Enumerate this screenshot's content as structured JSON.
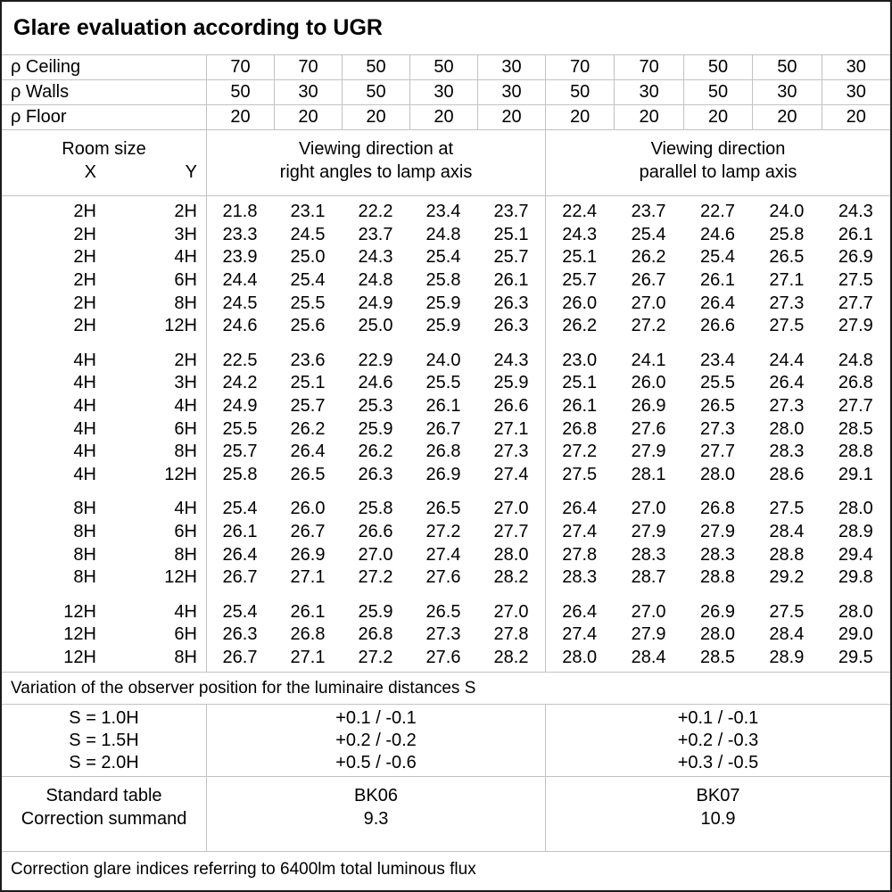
{
  "title": "Glare evaluation according to UGR",
  "reflectance": {
    "rows": [
      {
        "label": "ρ Ceiling",
        "values": [
          "70",
          "70",
          "50",
          "50",
          "30",
          "70",
          "70",
          "50",
          "50",
          "30"
        ]
      },
      {
        "label": "ρ Walls",
        "values": [
          "50",
          "30",
          "50",
          "30",
          "30",
          "50",
          "30",
          "50",
          "30",
          "30"
        ]
      },
      {
        "label": "ρ Floor",
        "values": [
          "20",
          "20",
          "20",
          "20",
          "20",
          "20",
          "20",
          "20",
          "20",
          "20"
        ]
      }
    ]
  },
  "header": {
    "room_size_label": "Room size",
    "x_label": "X",
    "y_label": "Y",
    "group1_line1": "Viewing direction at",
    "group1_line2": "right angles to lamp axis",
    "group2_line1": "Viewing direction",
    "group2_line2": "parallel to lamp axis"
  },
  "ugr_blocks": [
    {
      "rows": [
        {
          "x": "2H",
          "y": "2H",
          "values": [
            "21.8",
            "23.1",
            "22.2",
            "23.4",
            "23.7",
            "22.4",
            "23.7",
            "22.7",
            "24.0",
            "24.3"
          ]
        },
        {
          "x": "2H",
          "y": "3H",
          "values": [
            "23.3",
            "24.5",
            "23.7",
            "24.8",
            "25.1",
            "24.3",
            "25.4",
            "24.6",
            "25.8",
            "26.1"
          ]
        },
        {
          "x": "2H",
          "y": "4H",
          "values": [
            "23.9",
            "25.0",
            "24.3",
            "25.4",
            "25.7",
            "25.1",
            "26.2",
            "25.4",
            "26.5",
            "26.9"
          ]
        },
        {
          "x": "2H",
          "y": "6H",
          "values": [
            "24.4",
            "25.4",
            "24.8",
            "25.8",
            "26.1",
            "25.7",
            "26.7",
            "26.1",
            "27.1",
            "27.5"
          ]
        },
        {
          "x": "2H",
          "y": "8H",
          "values": [
            "24.5",
            "25.5",
            "24.9",
            "25.9",
            "26.3",
            "26.0",
            "27.0",
            "26.4",
            "27.3",
            "27.7"
          ]
        },
        {
          "x": "2H",
          "y": "12H",
          "values": [
            "24.6",
            "25.6",
            "25.0",
            "25.9",
            "26.3",
            "26.2",
            "27.2",
            "26.6",
            "27.5",
            "27.9"
          ]
        }
      ]
    },
    {
      "rows": [
        {
          "x": "4H",
          "y": "2H",
          "values": [
            "22.5",
            "23.6",
            "22.9",
            "24.0",
            "24.3",
            "23.0",
            "24.1",
            "23.4",
            "24.4",
            "24.8"
          ]
        },
        {
          "x": "4H",
          "y": "3H",
          "values": [
            "24.2",
            "25.1",
            "24.6",
            "25.5",
            "25.9",
            "25.1",
            "26.0",
            "25.5",
            "26.4",
            "26.8"
          ]
        },
        {
          "x": "4H",
          "y": "4H",
          "values": [
            "24.9",
            "25.7",
            "25.3",
            "26.1",
            "26.6",
            "26.1",
            "26.9",
            "26.5",
            "27.3",
            "27.7"
          ]
        },
        {
          "x": "4H",
          "y": "6H",
          "values": [
            "25.5",
            "26.2",
            "25.9",
            "26.7",
            "27.1",
            "26.8",
            "27.6",
            "27.3",
            "28.0",
            "28.5"
          ]
        },
        {
          "x": "4H",
          "y": "8H",
          "values": [
            "25.7",
            "26.4",
            "26.2",
            "26.8",
            "27.3",
            "27.2",
            "27.9",
            "27.7",
            "28.3",
            "28.8"
          ]
        },
        {
          "x": "4H",
          "y": "12H",
          "values": [
            "25.8",
            "26.5",
            "26.3",
            "26.9",
            "27.4",
            "27.5",
            "28.1",
            "28.0",
            "28.6",
            "29.1"
          ]
        }
      ]
    },
    {
      "rows": [
        {
          "x": "8H",
          "y": "4H",
          "values": [
            "25.4",
            "26.0",
            "25.8",
            "26.5",
            "27.0",
            "26.4",
            "27.0",
            "26.8",
            "27.5",
            "28.0"
          ]
        },
        {
          "x": "8H",
          "y": "6H",
          "values": [
            "26.1",
            "26.7",
            "26.6",
            "27.2",
            "27.7",
            "27.4",
            "27.9",
            "27.9",
            "28.4",
            "28.9"
          ]
        },
        {
          "x": "8H",
          "y": "8H",
          "values": [
            "26.4",
            "26.9",
            "27.0",
            "27.4",
            "28.0",
            "27.8",
            "28.3",
            "28.3",
            "28.8",
            "29.4"
          ]
        },
        {
          "x": "8H",
          "y": "12H",
          "values": [
            "26.7",
            "27.1",
            "27.2",
            "27.6",
            "28.2",
            "28.3",
            "28.7",
            "28.8",
            "29.2",
            "29.8"
          ]
        }
      ]
    },
    {
      "rows": [
        {
          "x": "12H",
          "y": "4H",
          "values": [
            "25.4",
            "26.1",
            "25.9",
            "26.5",
            "27.0",
            "26.4",
            "27.0",
            "26.9",
            "27.5",
            "28.0"
          ]
        },
        {
          "x": "12H",
          "y": "6H",
          "values": [
            "26.3",
            "26.8",
            "26.8",
            "27.3",
            "27.8",
            "27.4",
            "27.9",
            "28.0",
            "28.4",
            "29.0"
          ]
        },
        {
          "x": "12H",
          "y": "8H",
          "values": [
            "26.7",
            "27.1",
            "27.2",
            "27.6",
            "28.2",
            "28.0",
            "28.4",
            "28.5",
            "28.9",
            "29.5"
          ]
        }
      ]
    }
  ],
  "variation": {
    "note": "Variation of the observer position for the luminaire distances S",
    "rows": [
      {
        "s": "S = 1.0H",
        "right_angles": "+0.1 / -0.1",
        "parallel": "+0.1 / -0.1"
      },
      {
        "s": "S = 1.5H",
        "right_angles": "+0.2 / -0.2",
        "parallel": "+0.2 / -0.3"
      },
      {
        "s": "S = 2.0H",
        "right_angles": "+0.5 / -0.6",
        "parallel": "+0.3 / -0.5"
      }
    ]
  },
  "summary": {
    "rows": [
      {
        "label": "Standard table",
        "right_angles": "BK06",
        "parallel": "BK07"
      },
      {
        "label": "Correction summand",
        "right_angles": "9.3",
        "parallel": "10.9"
      }
    ]
  },
  "footer_note": "Correction glare indices referring to 6400lm total luminous flux",
  "colors": {
    "grid_line": "#c2c2c2",
    "border": "#1c1c1c",
    "text": "#000000",
    "background": "#ffffff"
  }
}
